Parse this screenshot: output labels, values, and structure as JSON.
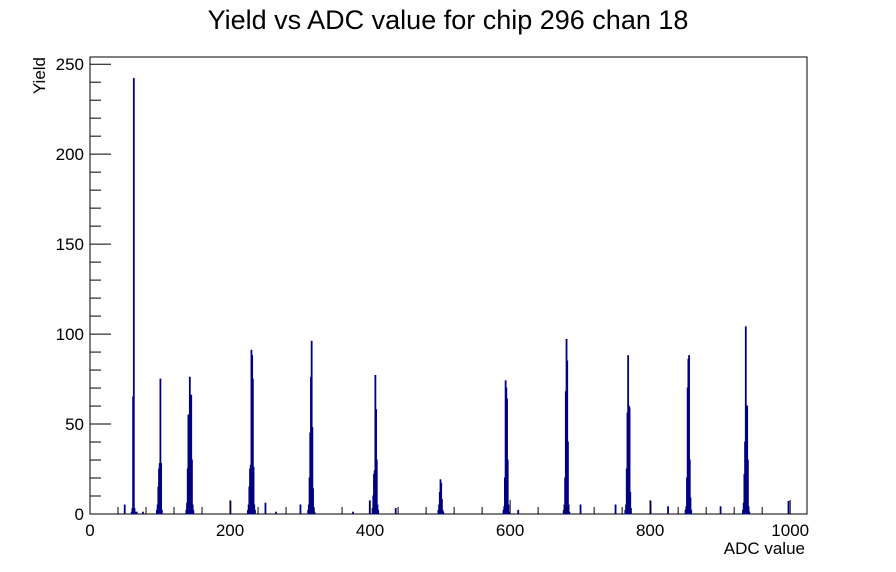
{
  "chart_data": {
    "type": "bar",
    "title": "Yield vs ADC value for chip 296 chan 18",
    "xlabel": "ADC value",
    "ylabel": "Yield",
    "xlim": [
      0,
      1024
    ],
    "ylim": [
      0,
      254
    ],
    "x_ticks": [
      0,
      200,
      400,
      600,
      800,
      1000
    ],
    "y_ticks": [
      0,
      50,
      100,
      150,
      200,
      250
    ],
    "grid": false,
    "legend": "none",
    "bin_width": 1,
    "series": [
      {
        "color": "#000080",
        "points": [
          [
            49,
            5
          ],
          [
            59,
            1
          ],
          [
            60,
            3
          ],
          [
            61,
            65
          ],
          [
            62,
            242
          ],
          [
            63,
            3
          ],
          [
            64,
            1
          ],
          [
            66,
            1
          ],
          [
            75,
            1
          ],
          [
            95,
            2
          ],
          [
            96,
            5
          ],
          [
            97,
            15
          ],
          [
            98,
            25
          ],
          [
            99,
            28
          ],
          [
            100,
            75
          ],
          [
            101,
            28
          ],
          [
            102,
            2
          ],
          [
            137,
            2
          ],
          [
            138,
            6
          ],
          [
            139,
            25
          ],
          [
            140,
            55
          ],
          [
            141,
            45
          ],
          [
            142,
            76
          ],
          [
            143,
            40
          ],
          [
            144,
            66
          ],
          [
            145,
            30
          ],
          [
            146,
            5
          ],
          [
            147,
            2
          ],
          [
            200,
            7
          ],
          [
            225,
            2
          ],
          [
            226,
            5
          ],
          [
            227,
            15
          ],
          [
            228,
            25
          ],
          [
            229,
            27
          ],
          [
            230,
            91
          ],
          [
            231,
            88
          ],
          [
            232,
            75
          ],
          [
            233,
            26
          ],
          [
            234,
            5
          ],
          [
            235,
            2
          ],
          [
            250,
            6
          ],
          [
            265,
            1
          ],
          [
            300,
            5
          ],
          [
            311,
            2
          ],
          [
            312,
            5
          ],
          [
            313,
            20
          ],
          [
            314,
            45
          ],
          [
            315,
            76
          ],
          [
            316,
            96
          ],
          [
            317,
            48
          ],
          [
            318,
            14
          ],
          [
            319,
            3
          ],
          [
            320,
            1
          ],
          [
            375,
            1
          ],
          [
            399,
            7
          ],
          [
            403,
            3
          ],
          [
            404,
            10
          ],
          [
            405,
            22
          ],
          [
            406,
            24
          ],
          [
            407,
            77
          ],
          [
            408,
            58
          ],
          [
            409,
            30
          ],
          [
            410,
            5
          ],
          [
            411,
            2
          ],
          [
            436,
            3
          ],
          [
            497,
            2
          ],
          [
            498,
            5
          ],
          [
            499,
            12
          ],
          [
            500,
            19
          ],
          [
            501,
            17
          ],
          [
            502,
            8
          ],
          [
            503,
            2
          ],
          [
            504,
            1
          ],
          [
            590,
            2
          ],
          [
            591,
            4
          ],
          [
            592,
            20
          ],
          [
            593,
            74
          ],
          [
            594,
            70
          ],
          [
            595,
            64
          ],
          [
            596,
            30
          ],
          [
            597,
            5
          ],
          [
            598,
            1
          ],
          [
            611,
            2
          ],
          [
            676,
            2
          ],
          [
            677,
            5
          ],
          [
            678,
            20
          ],
          [
            679,
            68
          ],
          [
            680,
            97
          ],
          [
            681,
            85
          ],
          [
            682,
            40
          ],
          [
            683,
            5
          ],
          [
            684,
            1
          ],
          [
            700,
            5
          ],
          [
            750,
            5
          ],
          [
            764,
            2
          ],
          [
            765,
            5
          ],
          [
            766,
            25
          ],
          [
            767,
            56
          ],
          [
            768,
            88
          ],
          [
            769,
            60
          ],
          [
            770,
            59
          ],
          [
            771,
            12
          ],
          [
            772,
            3
          ],
          [
            800,
            7
          ],
          [
            825,
            4
          ],
          [
            850,
            2
          ],
          [
            851,
            4
          ],
          [
            852,
            20
          ],
          [
            853,
            70
          ],
          [
            854,
            86
          ],
          [
            855,
            88
          ],
          [
            856,
            30
          ],
          [
            857,
            9
          ],
          [
            858,
            2
          ],
          [
            900,
            4
          ],
          [
            932,
            2
          ],
          [
            933,
            6
          ],
          [
            934,
            22
          ],
          [
            935,
            40
          ],
          [
            936,
            104
          ],
          [
            937,
            45
          ],
          [
            938,
            60
          ],
          [
            939,
            30
          ],
          [
            940,
            4
          ],
          [
            941,
            1
          ],
          [
            997,
            7
          ]
        ]
      }
    ]
  }
}
